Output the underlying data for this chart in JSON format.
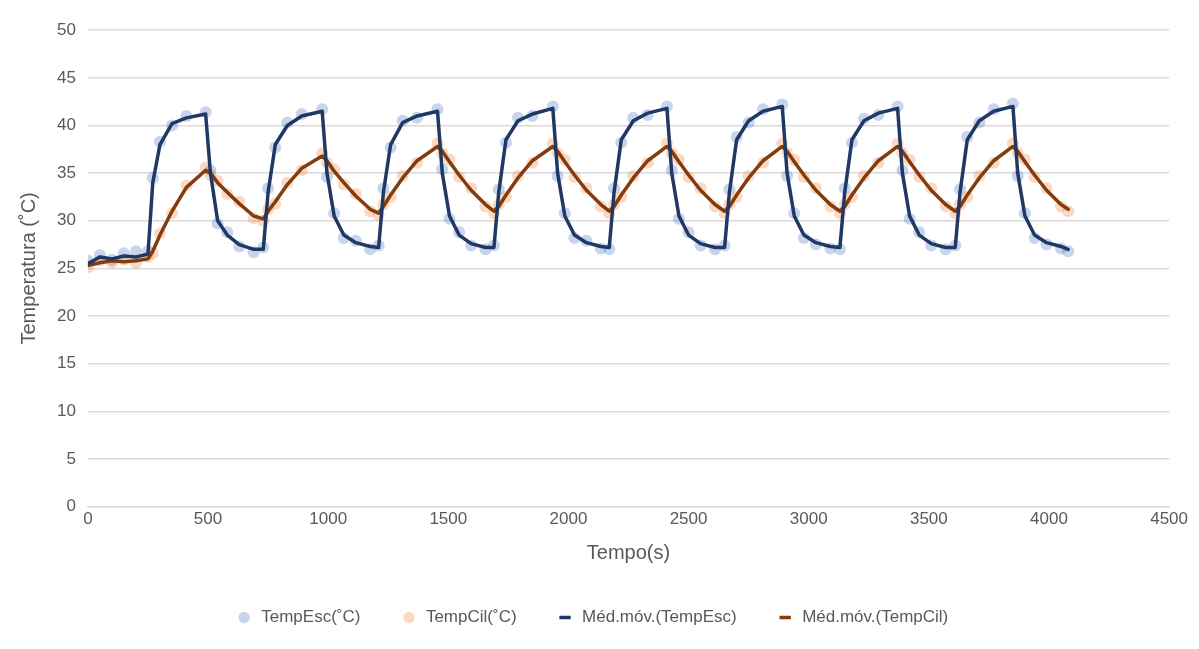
{
  "chart_data": {
    "type": "scatter",
    "xlabel": "Tempo(s)",
    "ylabel": "Temperatura (˚C)",
    "x": [
      0,
      50,
      100,
      150,
      200,
      250,
      270,
      300,
      350,
      410,
      490,
      510,
      540,
      580,
      630,
      690,
      730,
      750,
      780,
      830,
      890,
      975,
      995,
      1025,
      1065,
      1115,
      1175,
      1210,
      1230,
      1260,
      1310,
      1370,
      1455,
      1475,
      1505,
      1545,
      1595,
      1655,
      1690,
      1710,
      1740,
      1790,
      1850,
      1935,
      1955,
      1985,
      2025,
      2075,
      2135,
      2170,
      2190,
      2220,
      2270,
      2330,
      2410,
      2430,
      2460,
      2500,
      2550,
      2610,
      2650,
      2670,
      2700,
      2750,
      2810,
      2890,
      2910,
      2940,
      2980,
      3030,
      3090,
      3130,
      3150,
      3180,
      3230,
      3290,
      3370,
      3390,
      3420,
      3460,
      3510,
      3570,
      3610,
      3630,
      3660,
      3710,
      3770,
      3850,
      3870,
      3900,
      3940,
      3990,
      4050,
      4080
    ],
    "xlim": [
      0,
      4500
    ],
    "xticks": [
      0,
      500,
      1000,
      1500,
      2000,
      2500,
      3000,
      3500,
      4000,
      4500
    ],
    "ylim": [
      0,
      50
    ],
    "yticks": [
      0,
      5,
      10,
      15,
      20,
      25,
      30,
      35,
      40,
      45,
      50
    ],
    "grid": "y",
    "legend": "bottom",
    "series": [
      {
        "name": "TempEsc(˚C)",
        "type": "scatter",
        "marker": "circle",
        "color": "#4472c4",
        "values": [
          25.8,
          26.4,
          25.9,
          26.6,
          26.8,
          26.8,
          34.5,
          38.3,
          40.0,
          41.0,
          41.4,
          35.3,
          29.7,
          28.8,
          27.3,
          26.7,
          27.2,
          33.4,
          37.7,
          40.3,
          41.2,
          41.7,
          34.6,
          30.8,
          28.2,
          27.9,
          27.0,
          27.4,
          33.4,
          37.7,
          40.5,
          40.8,
          41.7,
          35.4,
          30.2,
          28.8,
          27.4,
          27.0,
          27.4,
          33.3,
          38.2,
          40.8,
          41.0,
          42.0,
          34.7,
          30.8,
          28.2,
          27.9,
          27.1,
          27.0,
          33.4,
          38.2,
          40.8,
          41.1,
          42.0,
          35.3,
          30.2,
          28.8,
          27.4,
          27.0,
          27.4,
          33.3,
          38.8,
          40.3,
          41.7,
          42.2,
          34.7,
          30.8,
          28.2,
          27.5,
          27.1,
          27.0,
          33.4,
          38.2,
          40.7,
          41.1,
          42.0,
          35.3,
          30.2,
          28.8,
          27.4,
          27.0,
          27.4,
          33.3,
          38.8,
          40.3,
          41.7,
          42.3,
          34.7,
          30.8,
          28.2,
          27.5,
          27.1,
          26.8
        ]
      },
      {
        "name": "TempCil(˚C)",
        "type": "scatter",
        "marker": "circle",
        "color": "#ed7d31",
        "values": [
          25.1,
          25.8,
          25.6,
          25.9,
          25.6,
          26.2,
          26.6,
          28.7,
          30.8,
          33.7,
          35.6,
          34.8,
          34.2,
          32.8,
          32.0,
          30.3,
          30.0,
          31.2,
          31.8,
          34.0,
          35.3,
          37.1,
          36.1,
          35.4,
          33.8,
          32.8,
          31.0,
          30.6,
          31.7,
          32.5,
          34.7,
          36.1,
          38.1,
          37.1,
          36.4,
          34.6,
          33.4,
          31.5,
          30.8,
          31.7,
          32.5,
          34.7,
          36.1,
          38.1,
          37.1,
          36.4,
          34.6,
          33.4,
          31.5,
          30.8,
          31.7,
          32.5,
          34.7,
          36.1,
          38.1,
          37.1,
          36.4,
          34.6,
          33.4,
          31.5,
          30.8,
          31.7,
          32.5,
          34.7,
          36.1,
          38.1,
          37.1,
          36.4,
          34.6,
          33.4,
          31.5,
          30.8,
          31.7,
          32.5,
          34.7,
          36.1,
          38.1,
          37.1,
          36.4,
          34.6,
          33.4,
          31.5,
          30.8,
          31.7,
          32.5,
          34.7,
          36.1,
          38.1,
          37.1,
          36.4,
          34.6,
          33.4,
          31.5,
          31.0
        ]
      },
      {
        "name": "Méd.móv.(TempEsc)",
        "type": "line",
        "marker": "none",
        "line_style": "solid",
        "color": "#203864",
        "values": [
          25.5,
          26.2,
          26.0,
          26.3,
          26.2,
          26.5,
          34,
          38,
          40.2,
          40.8,
          41.2,
          35,
          30,
          28.5,
          27.5,
          27,
          27,
          33,
          38,
          40,
          41,
          41.5,
          35,
          30.5,
          28.5,
          27.7,
          27.3,
          27.2,
          33,
          38,
          40.3,
          41,
          41.5,
          35,
          30.5,
          28.5,
          27.6,
          27.2,
          27.2,
          33,
          38.5,
          40.5,
          41.2,
          41.8,
          35,
          30.5,
          28.5,
          27.7,
          27.3,
          27.2,
          33,
          38.5,
          40.5,
          41.3,
          41.8,
          35,
          30.5,
          28.5,
          27.6,
          27.2,
          27.2,
          33,
          38.5,
          40.5,
          41.5,
          42,
          35,
          30.5,
          28.5,
          27.7,
          27.3,
          27.2,
          33,
          38.5,
          40.5,
          41.3,
          41.8,
          35,
          30.5,
          28.5,
          27.6,
          27.2,
          27.2,
          33,
          38.5,
          40.5,
          41.5,
          42,
          35,
          30.5,
          28.5,
          27.7,
          27.3,
          27
        ]
      },
      {
        "name": "Méd.móv.(TempCil)",
        "type": "line",
        "marker": "none",
        "line_style": "solid",
        "color": "#843c0c",
        "values": [
          25.3,
          25.6,
          25.8,
          25.7,
          25.8,
          26,
          26.8,
          28.5,
          31,
          33.5,
          35.3,
          35,
          34,
          33,
          31.8,
          30.5,
          30.2,
          31,
          32,
          33.8,
          35.5,
          36.8,
          36.3,
          35.2,
          34,
          32.6,
          31.2,
          30.8,
          31.5,
          32.7,
          34.5,
          36.3,
          37.8,
          37.3,
          36.2,
          34.8,
          33.2,
          31.7,
          31,
          31.5,
          32.7,
          34.5,
          36.3,
          37.8,
          37.3,
          36.2,
          34.8,
          33.2,
          31.7,
          31,
          31.5,
          32.7,
          34.5,
          36.3,
          37.8,
          37.3,
          36.2,
          34.8,
          33.2,
          31.7,
          31,
          31.5,
          32.7,
          34.5,
          36.3,
          37.8,
          37.3,
          36.2,
          34.8,
          33.2,
          31.7,
          31,
          31.5,
          32.7,
          34.5,
          36.3,
          37.8,
          37.3,
          36.2,
          34.8,
          33.2,
          31.7,
          31,
          31.5,
          32.7,
          34.5,
          36.3,
          37.8,
          37.3,
          36.2,
          34.8,
          33.2,
          31.7,
          31.2
        ]
      }
    ]
  }
}
